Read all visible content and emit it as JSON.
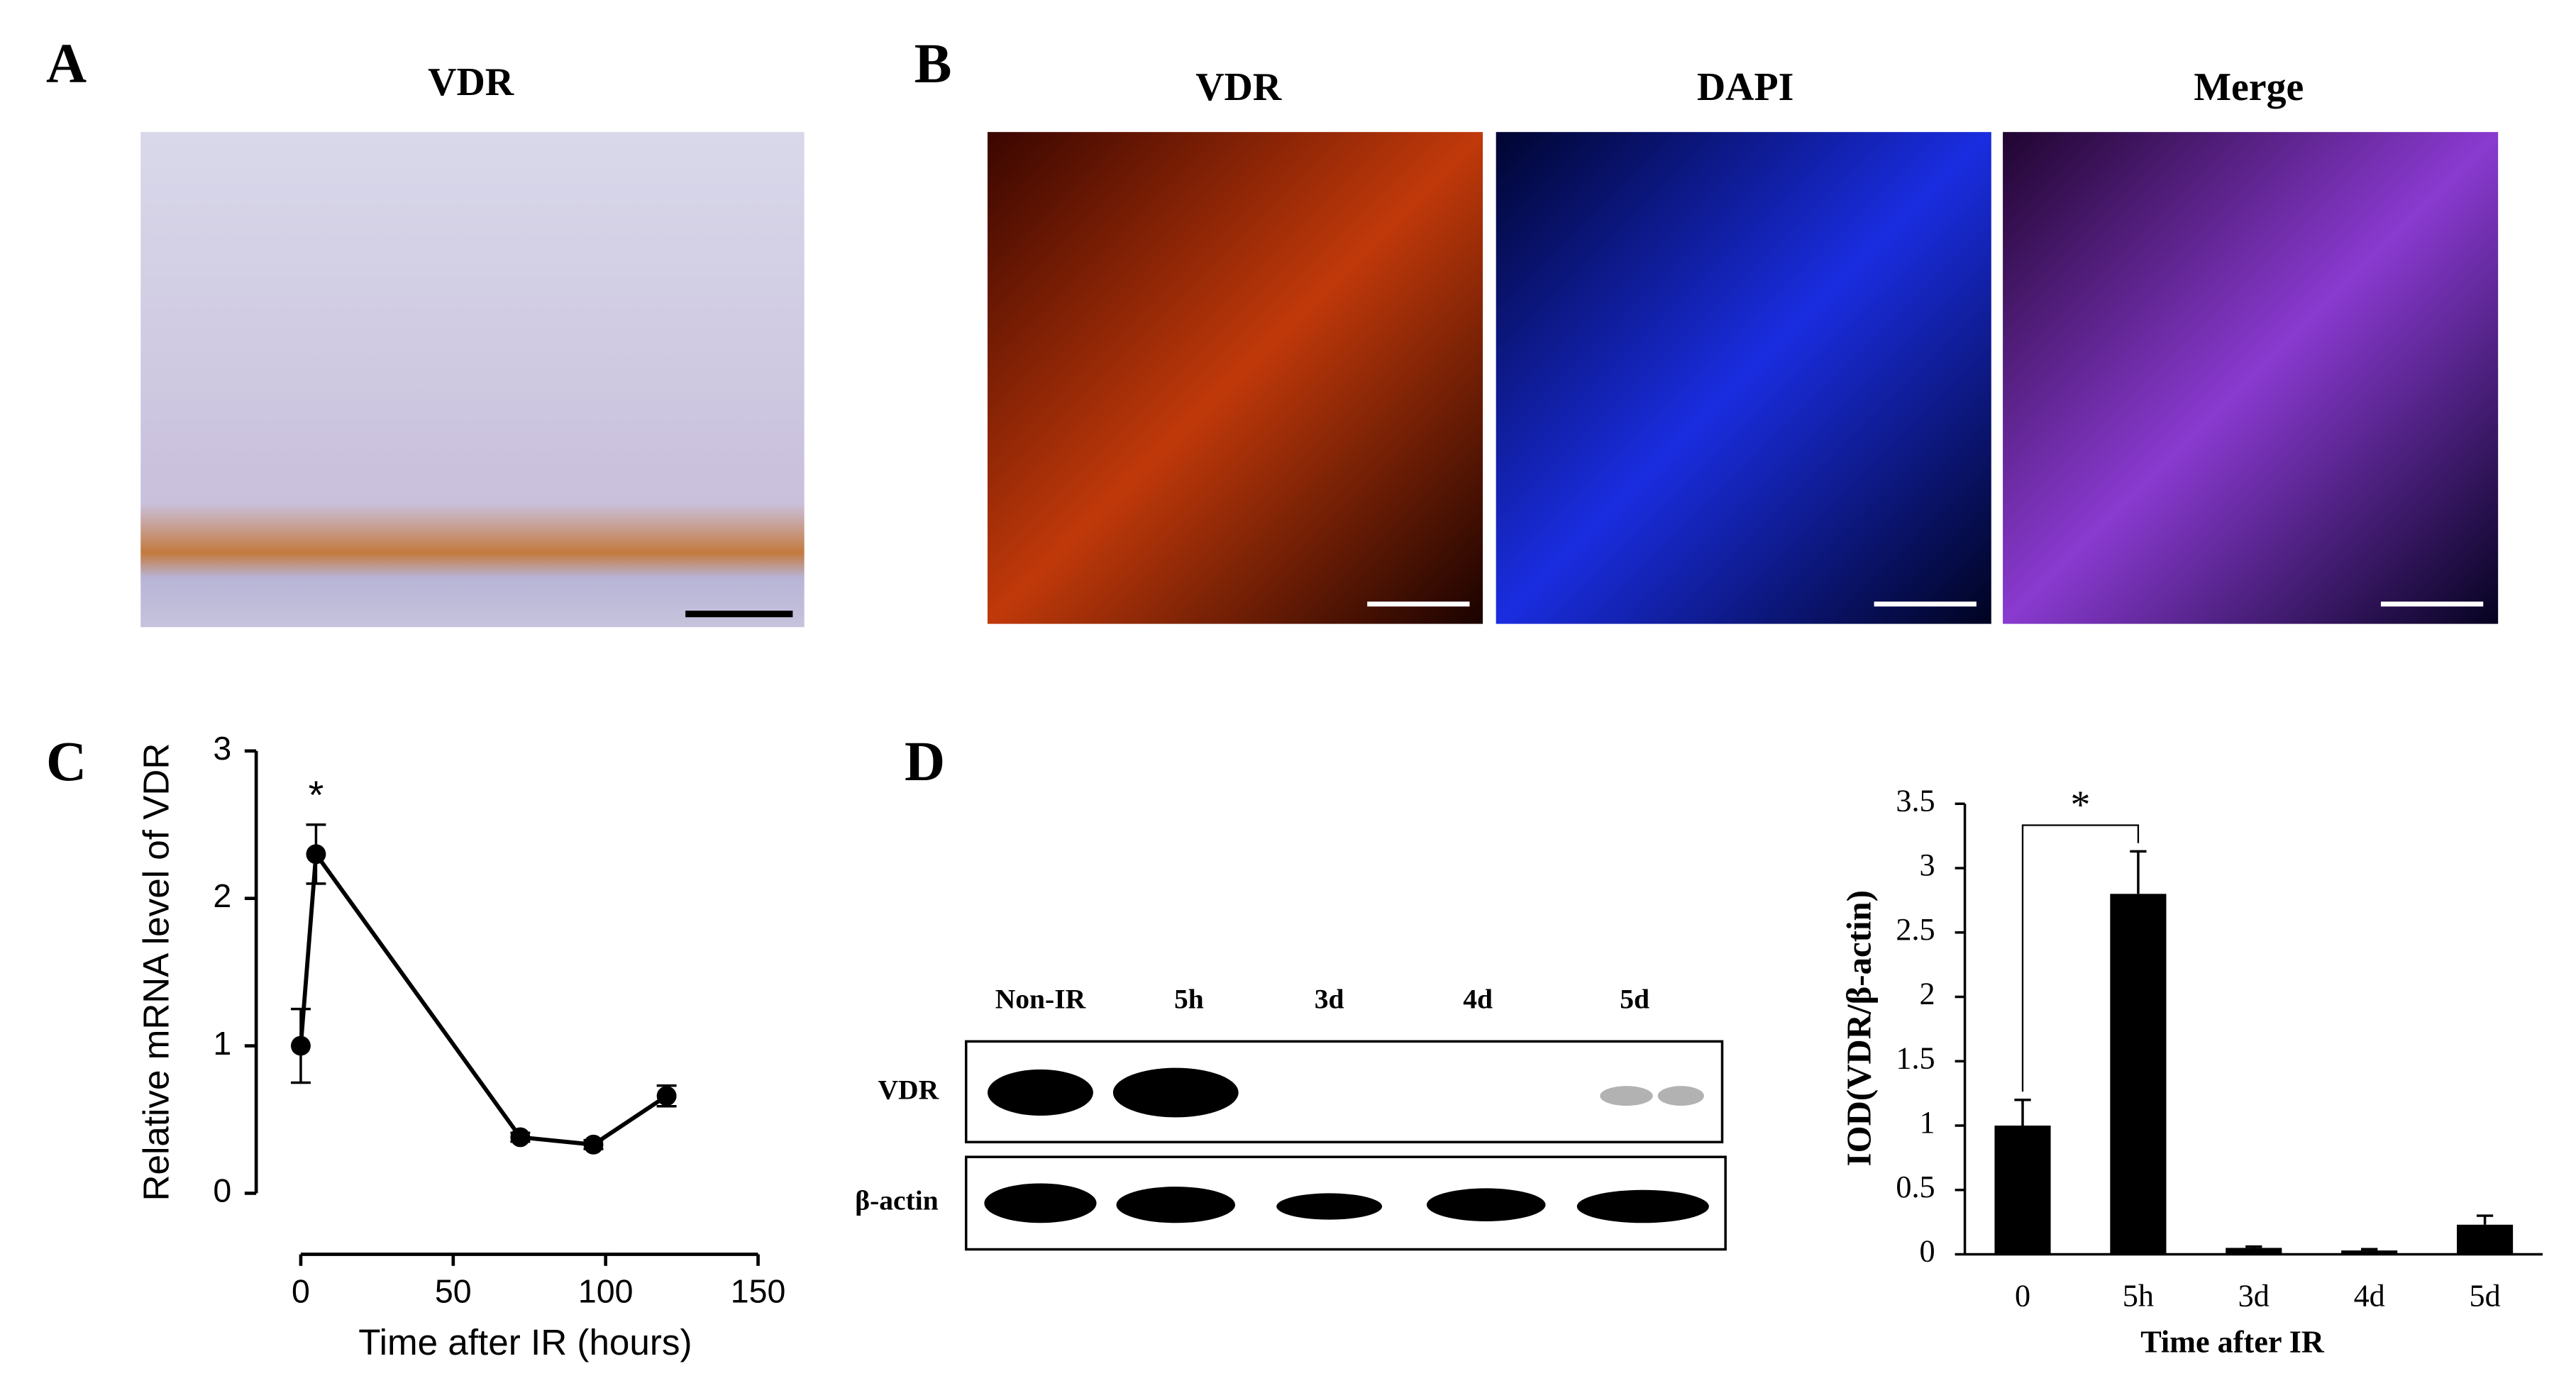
{
  "panels": {
    "A": {
      "label": "A",
      "title": "VDR"
    },
    "B": {
      "label": "B",
      "titles": [
        "VDR",
        "DAPI",
        "Merge"
      ]
    },
    "C": {
      "label": "C"
    },
    "D": {
      "label": "D",
      "lanes": [
        "Non-IR",
        "5h",
        "3d",
        "4d",
        "5d"
      ],
      "rows": [
        "VDR",
        "β-actin"
      ]
    }
  },
  "chart_data": [
    {
      "type": "line",
      "x": [
        0,
        5,
        72,
        96,
        120
      ],
      "values": [
        1,
        2.3,
        0.38,
        0.33,
        0.66
      ],
      "errors": [
        0.25,
        0.2,
        0.03,
        0.03,
        0.07
      ],
      "color": "#000000",
      "xlim": [
        0,
        150
      ],
      "xticks": [
        0,
        50,
        100,
        150
      ],
      "ylim": [
        0,
        3
      ],
      "yticks": [
        0,
        1,
        2,
        3
      ],
      "x_label": "Time after IR (hours)",
      "y_label": "Relative mRNA level of VDR",
      "annotation": "*"
    },
    {
      "type": "bar",
      "categories": [
        "0",
        "5h",
        "3d",
        "4d",
        "5d"
      ],
      "values": [
        1,
        2.8,
        0.05,
        0.03,
        0.23
      ],
      "errors": [
        0.2,
        0.33,
        0.01,
        0.01,
        0.07
      ],
      "color": "#000000",
      "ylim": [
        0,
        3.5
      ],
      "yticks": [
        0,
        0.5,
        1,
        1.5,
        2,
        2.5,
        3,
        3.5
      ],
      "x_label": "Time after IR",
      "y_label": "IOD(VDR/β-actin)",
      "annotation": "*"
    }
  ]
}
